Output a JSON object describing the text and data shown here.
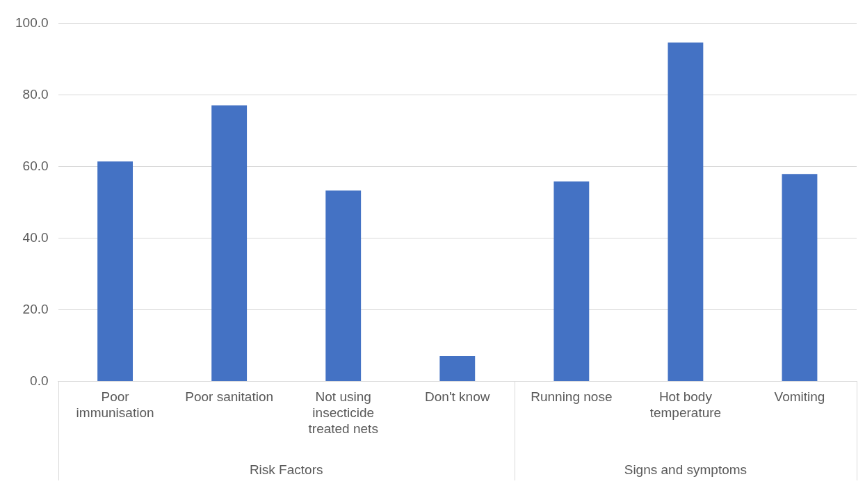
{
  "chart_data": {
    "type": "bar",
    "categories": [
      "Poor immunisation",
      "Poor sanitation",
      "Not using insecticide treated nets",
      "Don't know",
      "Running nose",
      "Hot body temperature",
      "Vomiting"
    ],
    "values": [
      61.4,
      77.1,
      53.3,
      7.1,
      55.8,
      94.6,
      57.9
    ],
    "color": "#4472c4",
    "ylim": [
      0,
      100
    ],
    "yticks": [
      {
        "value": 0,
        "label": "0.0"
      },
      {
        "value": 20,
        "label": "20.0"
      },
      {
        "value": 40,
        "label": "40.0"
      },
      {
        "value": 60,
        "label": "60.0"
      },
      {
        "value": 80,
        "label": "80.0"
      },
      {
        "value": 100,
        "label": "100.0"
      }
    ],
    "grid": "y",
    "annotations": [
      "Risk Factors",
      "Signs and symptoms"
    ]
  }
}
